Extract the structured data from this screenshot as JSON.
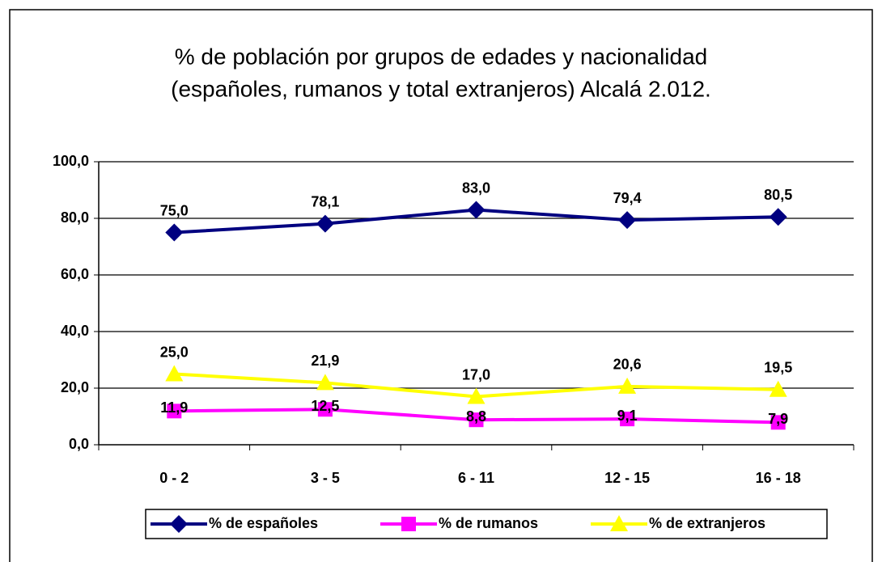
{
  "chart_data": {
    "type": "line",
    "title": [
      "% de población por grupos de edades y nacionalidad",
      "(españoles, rumanos y total extranjeros) Alcalá 2.012."
    ],
    "categories": [
      "0 - 2",
      "3 - 5",
      "6 - 11",
      "12 - 15",
      "16 - 18"
    ],
    "series": [
      {
        "name": "% de españoles",
        "color": "#000080",
        "marker": "diamond",
        "values": [
          75.0,
          78.1,
          83.0,
          79.4,
          80.5
        ],
        "value_labels": [
          "75,0",
          "78,1",
          "83,0",
          "79,4",
          "80,5"
        ]
      },
      {
        "name": "% de rumanos",
        "color": "#ff00ff",
        "marker": "square",
        "values": [
          11.9,
          12.5,
          8.8,
          9.1,
          7.9
        ],
        "value_labels": [
          "11,9",
          "12,5",
          "8,8",
          "9,1",
          "7,9"
        ]
      },
      {
        "name": "% de extranjeros",
        "color": "#ffff00",
        "marker": "triangle",
        "values": [
          25.0,
          21.9,
          17.0,
          20.6,
          19.5
        ],
        "value_labels": [
          "25,0",
          "21,9",
          "17,0",
          "20,6",
          "19,5"
        ]
      }
    ],
    "ylim": [
      0,
      100
    ],
    "yticks": [
      {
        "value": 0,
        "label": "0,0"
      },
      {
        "value": 20,
        "label": "20,0"
      },
      {
        "value": 40,
        "label": "40,0"
      },
      {
        "value": 60,
        "label": "60,0"
      },
      {
        "value": 80,
        "label": "80,0"
      },
      {
        "value": 100,
        "label": "100,0"
      }
    ],
    "grid": true,
    "legend": "bottom"
  }
}
